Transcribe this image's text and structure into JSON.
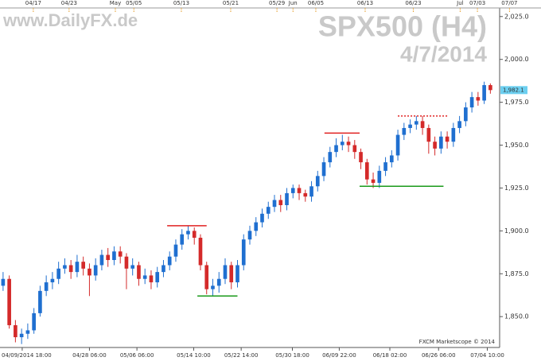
{
  "chart_data": {
    "type": "candlestick",
    "title": "SPX500 (H4)",
    "subtitle": "4/7/2014",
    "watermark": "www.DailyFX.de",
    "credit": "FXCM Marketscope © 2014",
    "open": [
      1868,
      1872,
      1845,
      1838,
      1840,
      1842,
      1852,
      1865,
      1870,
      1872,
      1878,
      1880,
      1876,
      1882,
      1878,
      1874,
      1880,
      1886,
      1883,
      1888,
      1885,
      1878,
      1880,
      1872,
      1874,
      1870,
      1876,
      1880,
      1885,
      1892,
      1898,
      1900,
      1896,
      1880,
      1866,
      1868,
      1872,
      1880,
      1870,
      1880,
      1895,
      1900,
      1905,
      1910,
      1914,
      1918,
      1915,
      1922,
      1925,
      1922,
      1920,
      1926,
      1932,
      1940,
      1946,
      1950,
      1952,
      1950,
      1946,
      1940,
      1930,
      1928,
      1935,
      1940,
      1944,
      1956,
      1960,
      1962,
      1964,
      1960,
      1952,
      1948,
      1955,
      1952,
      1960,
      1964,
      1972,
      1978,
      1976,
      1985
    ],
    "high": [
      1876,
      1874,
      1848,
      1843,
      1846,
      1855,
      1868,
      1874,
      1876,
      1882,
      1884,
      1883,
      1886,
      1885,
      1881,
      1884,
      1889,
      1890,
      1891,
      1891,
      1887,
      1884,
      1882,
      1878,
      1877,
      1879,
      1883,
      1888,
      1895,
      1901,
      1903,
      1902,
      1898,
      1882,
      1872,
      1876,
      1884,
      1882,
      1883,
      1898,
      1903,
      1908,
      1913,
      1917,
      1921,
      1921,
      1925,
      1927,
      1927,
      1924,
      1929,
      1935,
      1943,
      1949,
      1954,
      1956,
      1955,
      1953,
      1948,
      1942,
      1934,
      1938,
      1943,
      1947,
      1959,
      1963,
      1965,
      1967,
      1967,
      1962,
      1955,
      1958,
      1958,
      1963,
      1967,
      1975,
      1981,
      1981,
      1987,
      1986
    ],
    "low": [
      1865,
      1843,
      1835,
      1834,
      1837,
      1840,
      1850,
      1862,
      1866,
      1869,
      1875,
      1872,
      1873,
      1874,
      1862,
      1871,
      1877,
      1879,
      1880,
      1881,
      1866,
      1874,
      1868,
      1869,
      1866,
      1867,
      1873,
      1877,
      1882,
      1889,
      1895,
      1892,
      1877,
      1863,
      1862,
      1864,
      1869,
      1866,
      1867,
      1877,
      1892,
      1897,
      1902,
      1907,
      1911,
      1911,
      1912,
      1919,
      1918,
      1917,
      1917,
      1923,
      1929,
      1937,
      1943,
      1947,
      1946,
      1942,
      1936,
      1927,
      1925,
      1925,
      1932,
      1937,
      1941,
      1953,
      1957,
      1959,
      1956,
      1945,
      1944,
      1945,
      1948,
      1949,
      1957,
      1961,
      1969,
      1973,
      1974,
      1980
    ],
    "close": [
      1872,
      1845,
      1838,
      1840,
      1842,
      1852,
      1865,
      1870,
      1872,
      1878,
      1880,
      1876,
      1882,
      1878,
      1874,
      1880,
      1886,
      1883,
      1888,
      1885,
      1878,
      1880,
      1872,
      1874,
      1870,
      1876,
      1880,
      1885,
      1892,
      1898,
      1900,
      1896,
      1880,
      1866,
      1868,
      1872,
      1880,
      1870,
      1880,
      1895,
      1900,
      1905,
      1910,
      1914,
      1918,
      1915,
      1922,
      1925,
      1922,
      1920,
      1926,
      1932,
      1940,
      1946,
      1950,
      1952,
      1950,
      1946,
      1940,
      1930,
      1928,
      1935,
      1940,
      1944,
      1956,
      1960,
      1962,
      1964,
      1960,
      1952,
      1948,
      1955,
      1952,
      1960,
      1964,
      1972,
      1978,
      1976,
      1985,
      1982.1
    ],
    "up_color": "#1f6fd0",
    "down_color": "#d42a2a",
    "last": {
      "value": 1982.1,
      "label": "1,982.1"
    },
    "levels": [
      {
        "value": 1903,
        "from": 27.1,
        "to": 33.5,
        "color": "#e02020",
        "style": "solid"
      },
      {
        "value": 1862,
        "from": 32,
        "to": 38.5,
        "color": "#1a9a1a",
        "style": "solid"
      },
      {
        "value": 1957,
        "from": 52.6,
        "to": 58.3,
        "color": "#e02020",
        "style": "solid"
      },
      {
        "value": 1926,
        "from": 58.3,
        "to": 71.9,
        "color": "#1a9a1a",
        "style": "solid"
      },
      {
        "value": 1967,
        "from": 64.5,
        "to": 72.6,
        "color": "#e02020",
        "style": "dotted"
      }
    ],
    "xlim": [
      0,
      81
    ],
    "ylim": [
      1832,
      2030
    ],
    "yticks": [
      {
        "value": 1850,
        "label": "1,850.0"
      },
      {
        "value": 1875,
        "label": "1,875.0"
      },
      {
        "value": 1900,
        "label": "1,900.0"
      },
      {
        "value": 1925,
        "label": "1,925.0"
      },
      {
        "value": 1950,
        "label": "1,950.0"
      },
      {
        "value": 1975,
        "label": "1,975.0"
      },
      {
        "value": 2000,
        "label": "2,000.0"
      },
      {
        "value": 2025,
        "label": "2,025.0"
      }
    ],
    "xticks_top": [
      {
        "value": 5.4,
        "label": "04/17"
      },
      {
        "value": 11.2,
        "label": "04/23"
      },
      {
        "value": 18.7,
        "label": "May"
      },
      {
        "value": 21.7,
        "label": "05/05"
      },
      {
        "value": 29.4,
        "label": "05/13"
      },
      {
        "value": 37.4,
        "label": "05/21"
      },
      {
        "value": 44.9,
        "label": "05/29"
      },
      {
        "value": 47.5,
        "label": "Jun"
      },
      {
        "value": 51.2,
        "label": "06/05"
      },
      {
        "value": 59.2,
        "label": "06/13"
      },
      {
        "value": 67,
        "label": "06/23"
      },
      {
        "value": 74.6,
        "label": "Jul"
      },
      {
        "value": 77.4,
        "label": "07/03"
      },
      {
        "value": 82.6,
        "label": "07/07"
      }
    ],
    "xticks": [
      {
        "value": 3.6,
        "label": "04/09/2014 18:00"
      },
      {
        "value": 14.5,
        "label": "04/28 06:00"
      },
      {
        "value": 22.2,
        "label": "05/06 06:00"
      },
      {
        "value": 31.4,
        "label": "05/14 10:00"
      },
      {
        "value": 39.1,
        "label": "05/22 14:00"
      },
      {
        "value": 47.4,
        "label": "05/30 18:00"
      },
      {
        "value": 55,
        "label": "06/09 22:00"
      },
      {
        "value": 63.2,
        "label": "06/18 02:00"
      },
      {
        "value": 71.1,
        "label": "06/26 06:00"
      },
      {
        "value": 79,
        "label": "07/04 10:00"
      }
    ]
  }
}
